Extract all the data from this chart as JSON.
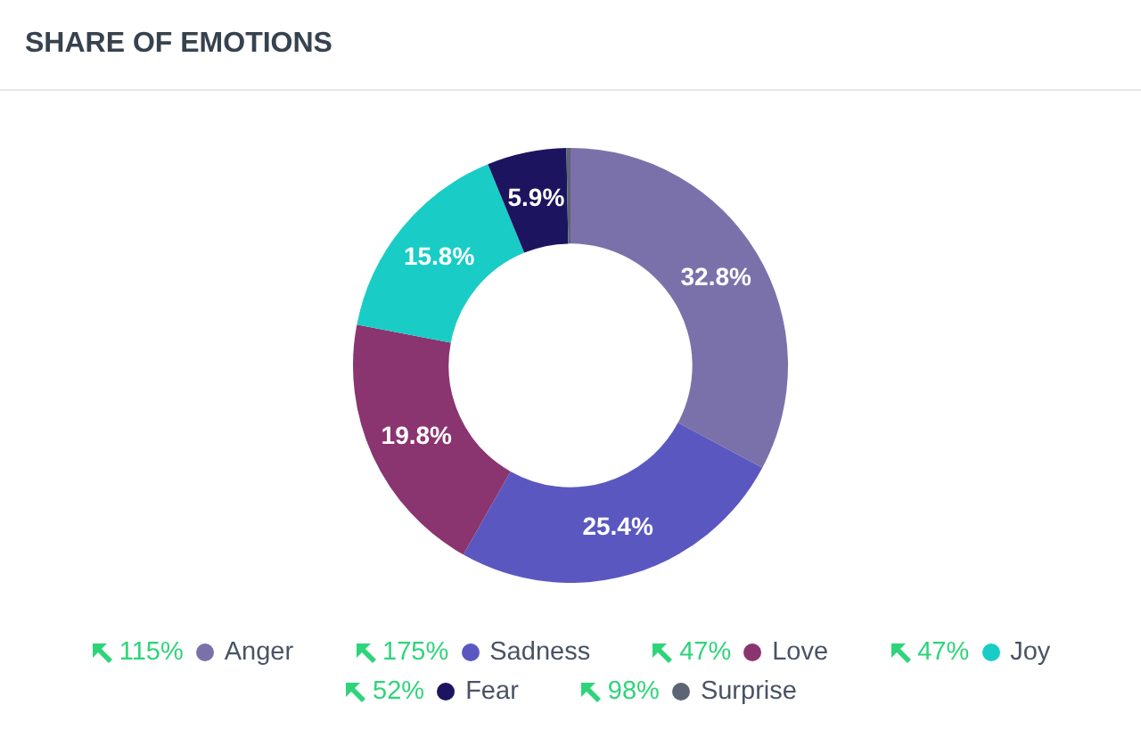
{
  "chart_data": {
    "type": "donut",
    "title": "SHARE OF EMOTIONS",
    "categories": [
      "Anger",
      "Sadness",
      "Love",
      "Joy",
      "Fear",
      "Surprise"
    ],
    "values": [
      32.8,
      25.4,
      19.8,
      15.8,
      5.9,
      0.3
    ],
    "colors": [
      "#7b71aa",
      "#5a58c0",
      "#8a3470",
      "#19cdc6",
      "#1d1460",
      "#5d6574"
    ],
    "value_labels": [
      "32.8%",
      "25.4%",
      "19.8%",
      "15.8%",
      "5.9%",
      null
    ],
    "annotations": [
      "115%",
      "175%",
      "47%",
      "47%",
      "52%",
      "98%"
    ],
    "legend": "bottom"
  }
}
